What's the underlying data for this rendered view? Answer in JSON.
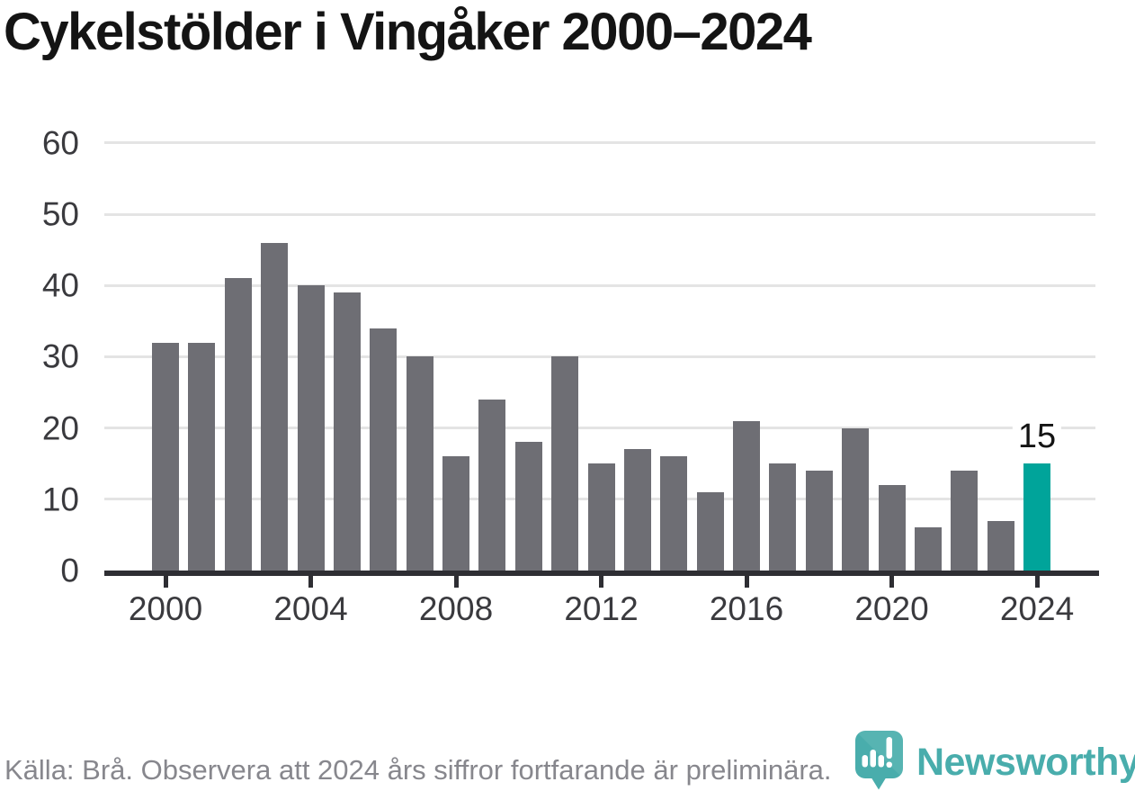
{
  "title": "Cykelstölder i Vingåker 2000–2024",
  "chart_data": {
    "type": "bar",
    "title": "Cykelstölder i Vingåker 2000–2024",
    "x": [
      2000,
      2001,
      2002,
      2003,
      2004,
      2005,
      2006,
      2007,
      2008,
      2009,
      2010,
      2011,
      2012,
      2013,
      2014,
      2015,
      2016,
      2017,
      2018,
      2019,
      2020,
      2021,
      2022,
      2023,
      2024
    ],
    "values": [
      32,
      32,
      41,
      46,
      40,
      39,
      34,
      30,
      16,
      24,
      18,
      30,
      15,
      17,
      16,
      11,
      21,
      15,
      14,
      20,
      12,
      6,
      14,
      7,
      15
    ],
    "highlight_x": 2024,
    "highlight_label": "15",
    "ylim": [
      0,
      60
    ],
    "y_ticks": [
      0,
      10,
      20,
      30,
      40,
      50,
      60
    ],
    "x_ticks": [
      2000,
      2004,
      2008,
      2012,
      2016,
      2020,
      2024
    ],
    "grid": "horizontal",
    "legend": "none"
  },
  "colors": {
    "bar": "#6E6E74",
    "highlight": "#00A49A",
    "gridline": "#E4E4E4",
    "axis": "#2E2E33",
    "tick_label": "#3A3A3E",
    "source_text": "#87878D",
    "logo": "#2FA2A0"
  },
  "footer": {
    "source_note": "Källa: Brå. Observera att 2024 års siffror fortfarande är preliminära.",
    "brand": "Newsworthy"
  },
  "icons": {
    "logo_icon": "newsworthy-bubble-barchart-icon"
  }
}
